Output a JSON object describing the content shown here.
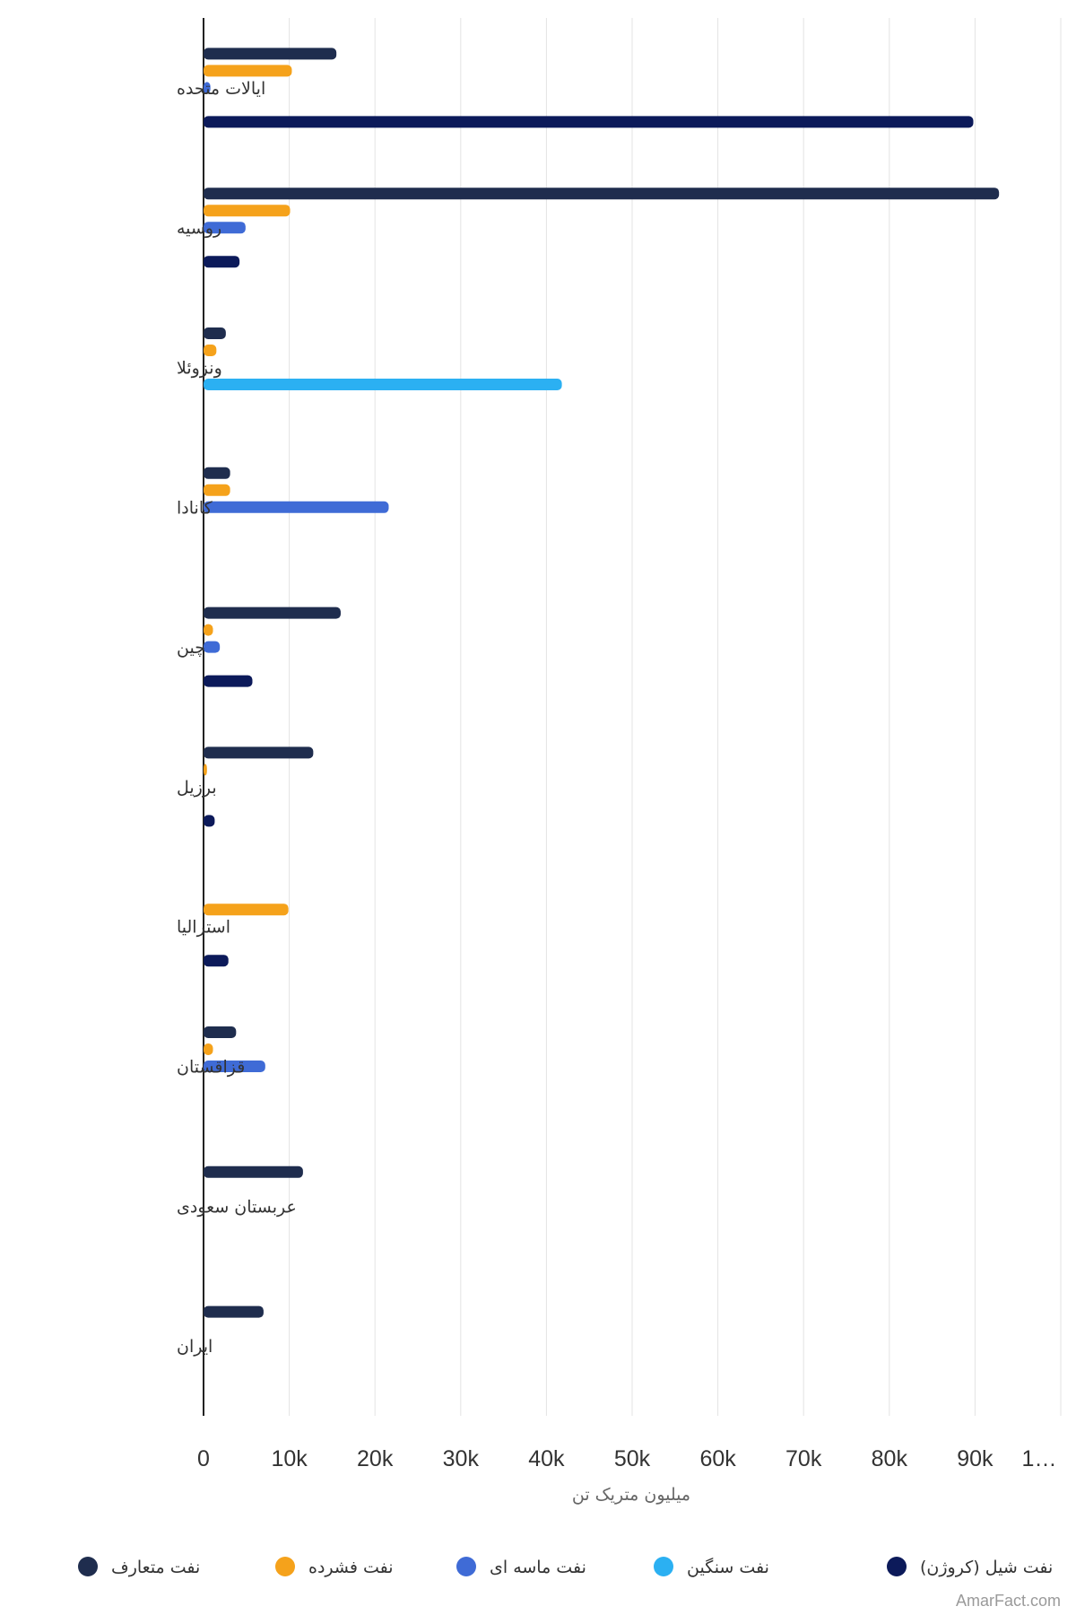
{
  "chart_data": {
    "type": "bar",
    "orientation": "horizontal",
    "categories": [
      "ایالات متحده",
      "روسیه",
      "ونزوئلا",
      "کانادا",
      "چین",
      "برزیل",
      "استرالیا",
      "قزاقستان",
      "عربستان سعودی",
      "ایران"
    ],
    "series": [
      {
        "name": "نفت متعارف",
        "color": "#1f2d4e",
        "values": [
          15500,
          92800,
          2600,
          3100,
          16000,
          12800,
          null,
          3800,
          11600,
          7000
        ]
      },
      {
        "name": "نفت فشرده",
        "color": "#f5a21b",
        "values": [
          10300,
          10100,
          1500,
          3100,
          1100,
          400,
          9900,
          1100,
          null,
          null
        ]
      },
      {
        "name": "نفت ماسه ای",
        "color": "#3f6bd6",
        "values": [
          800,
          4900,
          null,
          21600,
          1900,
          null,
          null,
          7200,
          null,
          null
        ]
      },
      {
        "name": "نفت سنگین",
        "color": "#2bb0f2",
        "values": [
          null,
          null,
          41800,
          null,
          null,
          null,
          null,
          null,
          null,
          null
        ]
      },
      {
        "name": "نفت شیل (کروژن)",
        "color": "#0c1a5a",
        "values": [
          89800,
          4200,
          null,
          null,
          5700,
          1300,
          2900,
          null,
          null,
          null
        ]
      }
    ],
    "xlim": [
      0,
      100000
    ],
    "xticks": [
      "0",
      "10k",
      "20k",
      "30k",
      "40k",
      "50k",
      "60k",
      "70k",
      "80k",
      "90k",
      "1…"
    ],
    "xlabel": "میلیون متریک تن",
    "grid": true,
    "legend_position": "bottom"
  },
  "credit": "AmarFact.com"
}
